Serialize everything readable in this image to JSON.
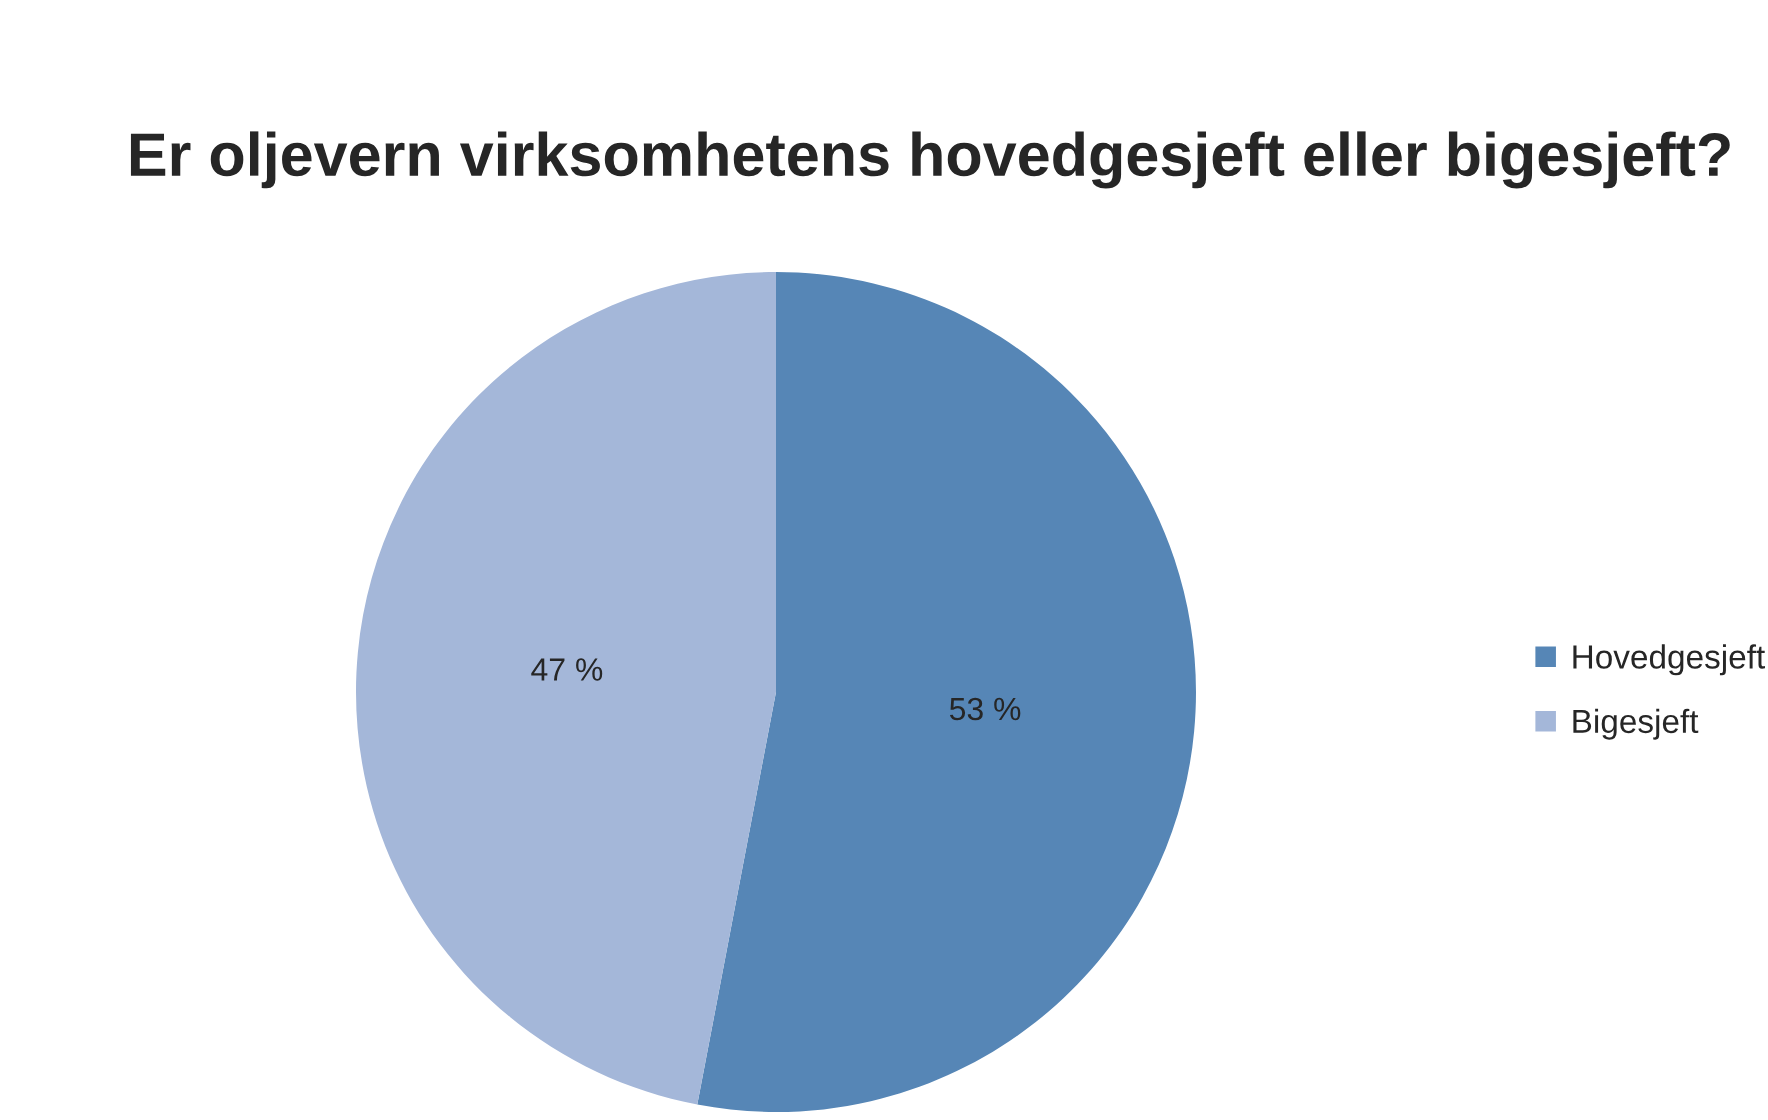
{
  "chart_data": {
    "type": "pie",
    "title": "Er oljevern virksomhetens hovedgesjeft eller bigesjeft?",
    "categories": [
      "Hovedgesjeft",
      "Bigesjeft"
    ],
    "values": [
      53,
      47
    ],
    "colors": [
      "#5686b6",
      "#a4b7d9"
    ],
    "value_labels": [
      "53 %",
      "47 %"
    ],
    "legend": "right"
  }
}
